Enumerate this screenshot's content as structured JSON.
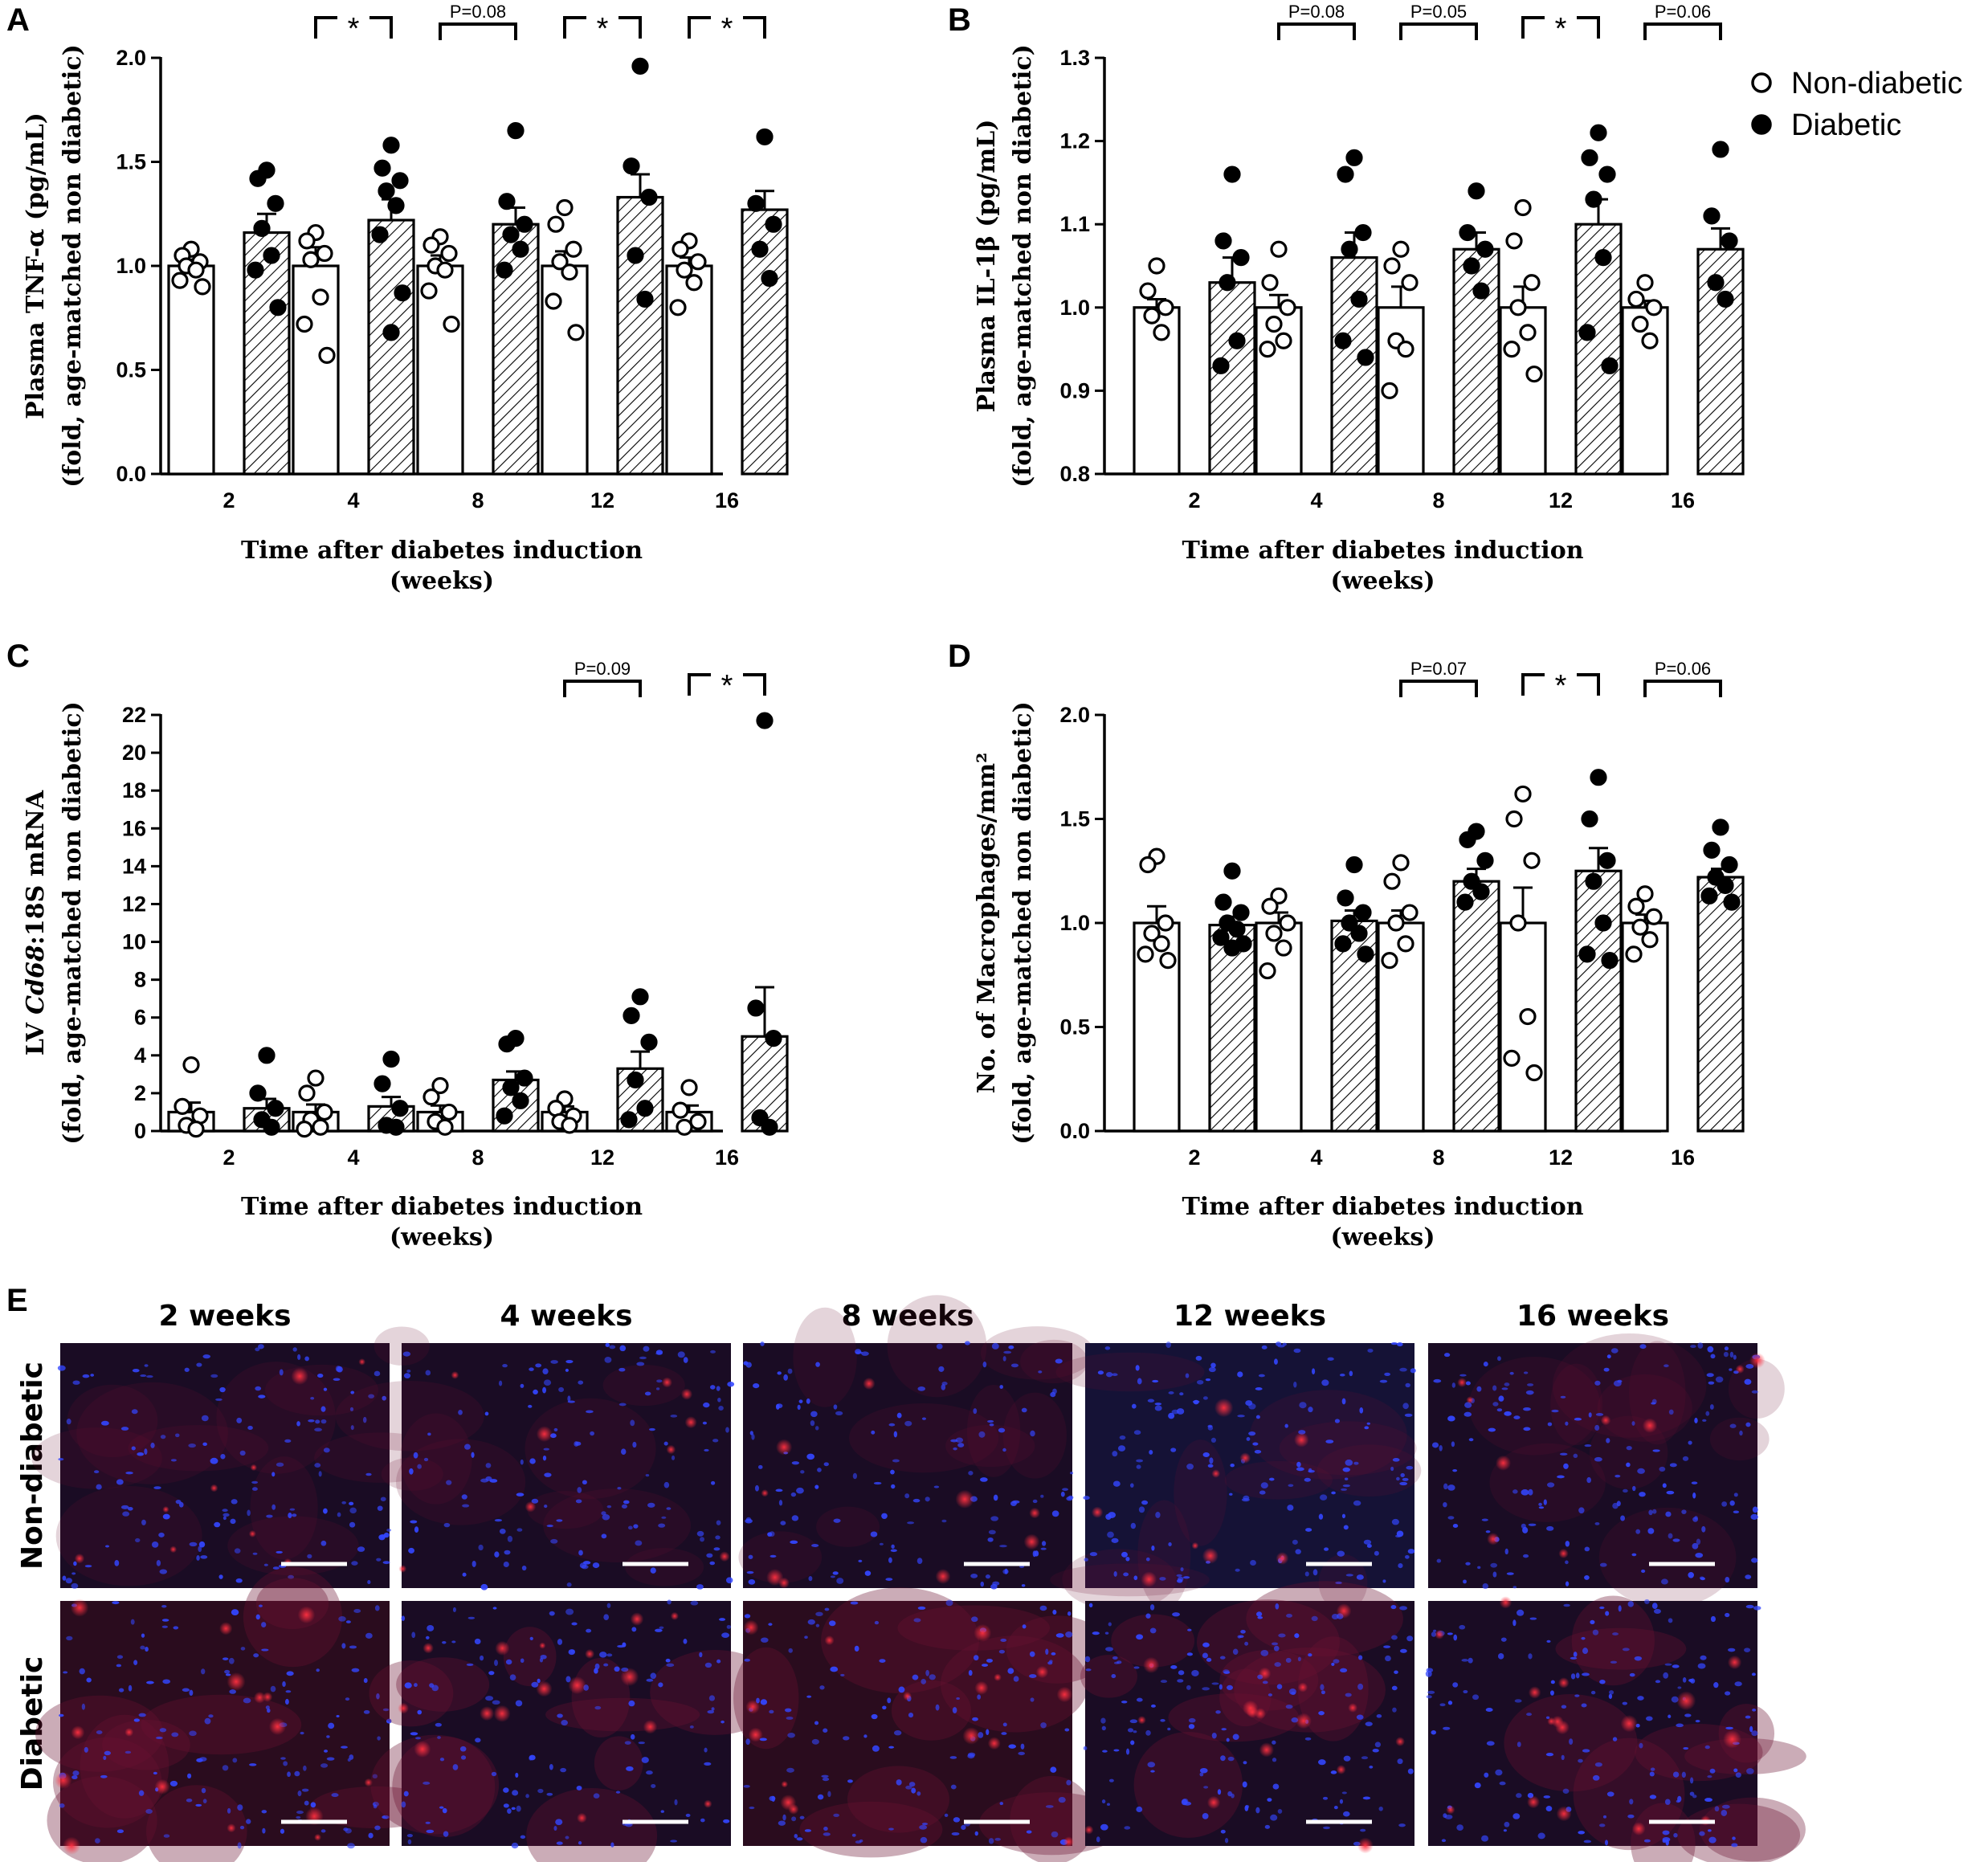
{
  "colors": {
    "axis": "#000000",
    "open_fill": "#ffffff",
    "filled": "#000000",
    "hatch": "#000000",
    "tissue_bg": "#1a0a22",
    "nuclei": "#2a3cff",
    "macrophage": "#ff2030",
    "scalebar": "#ffffff"
  },
  "legend": {
    "items": [
      "Non-diabetic",
      "Diabetic"
    ]
  },
  "chart_data": [
    {
      "panel": "A",
      "type": "bar",
      "categories": [
        "2",
        "4",
        "8",
        "12",
        "16"
      ],
      "xlabel": [
        "Time after diabetes induction",
        "(weeks)"
      ],
      "ylabel": [
        "Plasma TNF-α (pg/mL)",
        "(fold, age-matched non diabetic)"
      ],
      "ylim": [
        0,
        2.0
      ],
      "yticks": [
        0.0,
        0.5,
        1.0,
        1.5,
        2.0
      ],
      "ytick_labels": [
        "0.0",
        "0.5",
        "1.0",
        "1.5",
        "2.0"
      ],
      "series": [
        {
          "name": "Non-diabetic",
          "values": [
            1.0,
            1.0,
            1.0,
            1.0,
            1.0
          ],
          "sem": [
            0.03,
            0.09,
            0.05,
            0.07,
            0.04
          ],
          "points": [
            [
              1.08,
              1.05,
              1.02,
              1.0,
              0.98,
              0.93,
              0.9
            ],
            [
              1.16,
              1.12,
              1.06,
              1.03,
              0.85,
              0.72,
              0.57
            ],
            [
              1.14,
              1.1,
              1.06,
              1.0,
              0.98,
              0.88,
              0.72
            ],
            [
              1.28,
              1.2,
              1.08,
              1.02,
              0.97,
              0.83,
              0.68
            ],
            [
              1.12,
              1.08,
              1.02,
              0.98,
              0.92,
              0.8
            ]
          ]
        },
        {
          "name": "Diabetic",
          "values": [
            1.16,
            1.22,
            1.2,
            1.33,
            1.27
          ],
          "sem": [
            0.09,
            0.1,
            0.08,
            0.11,
            0.09
          ],
          "points": [
            [
              1.46,
              1.42,
              1.3,
              1.18,
              1.05,
              0.98,
              0.8
            ],
            [
              1.58,
              1.47,
              1.41,
              1.36,
              1.29,
              1.15,
              0.87,
              0.68
            ],
            [
              1.65,
              1.31,
              1.2,
              1.15,
              1.08,
              0.98
            ],
            [
              1.96,
              1.48,
              1.33,
              1.05,
              0.84
            ],
            [
              1.62,
              1.3,
              1.2,
              1.08,
              0.94
            ]
          ]
        }
      ],
      "significance": [
        {
          "category": "4",
          "label": "*"
        },
        {
          "category": "8",
          "label": "P=0.08"
        },
        {
          "category": "12",
          "label": "*"
        },
        {
          "category": "16",
          "label": "*"
        }
      ]
    },
    {
      "panel": "B",
      "type": "bar",
      "categories": [
        "2",
        "4",
        "8",
        "12",
        "16"
      ],
      "xlabel": [
        "Time after diabetes induction",
        "(weeks)"
      ],
      "ylabel": [
        "Plasma IL-1β (pg/mL)",
        "(fold, age-matched non diabetic)"
      ],
      "ylim": [
        0.8,
        1.3
      ],
      "yticks": [
        0.8,
        0.9,
        1.0,
        1.1,
        1.2,
        1.3
      ],
      "ytick_labels": [
        "0.8",
        "0.9",
        "1.0",
        "1.1",
        "1.2",
        "1.3"
      ],
      "series": [
        {
          "name": "Non-diabetic",
          "values": [
            1.0,
            1.0,
            1.0,
            1.0,
            1.0
          ],
          "sem": [
            0.01,
            0.015,
            0.025,
            0.025,
            0.008
          ],
          "points": [
            [
              1.05,
              1.02,
              1.0,
              0.99,
              0.97
            ],
            [
              1.07,
              1.03,
              1.0,
              0.98,
              0.96,
              0.95
            ],
            [
              1.07,
              1.05,
              1.03,
              0.96,
              0.95,
              0.9
            ],
            [
              1.12,
              1.08,
              1.03,
              1.0,
              0.97,
              0.95,
              0.92
            ],
            [
              1.03,
              1.01,
              1.0,
              0.98,
              0.96
            ]
          ]
        },
        {
          "name": "Diabetic",
          "values": [
            1.03,
            1.06,
            1.07,
            1.1,
            1.07
          ],
          "sem": [
            0.03,
            0.03,
            0.02,
            0.03,
            0.025
          ],
          "points": [
            [
              1.16,
              1.08,
              1.06,
              1.03,
              0.96,
              0.93
            ],
            [
              1.18,
              1.16,
              1.09,
              1.07,
              1.01,
              0.96,
              0.94
            ],
            [
              1.14,
              1.09,
              1.07,
              1.05,
              1.02
            ],
            [
              1.21,
              1.18,
              1.16,
              1.13,
              1.06,
              0.97,
              0.93
            ],
            [
              1.19,
              1.11,
              1.08,
              1.03,
              1.01
            ]
          ]
        }
      ],
      "significance": [
        {
          "category": "4",
          "label": "P=0.08"
        },
        {
          "category": "8",
          "label": "P=0.05"
        },
        {
          "category": "12",
          "label": "*"
        },
        {
          "category": "16",
          "label": "P=0.06"
        }
      ]
    },
    {
      "panel": "C",
      "type": "bar",
      "categories": [
        "2",
        "4",
        "8",
        "12",
        "16"
      ],
      "xlabel": [
        "Time after diabetes induction",
        "(weeks)"
      ],
      "ylabel_parts": [
        [
          "LV ",
          false
        ],
        [
          "Cd68",
          true
        ],
        [
          ":18S mRNA",
          false
        ]
      ],
      "ylabel": [
        "LV Cd68:18S mRNA",
        "(fold, age-matched non diabetic)"
      ],
      "ylim": [
        0,
        22
      ],
      "yticks": [
        0,
        2,
        4,
        6,
        8,
        10,
        12,
        14,
        16,
        18,
        20,
        22
      ],
      "ytick_labels": [
        "0",
        "2",
        "4",
        "6",
        "8",
        "10",
        "12",
        "14",
        "16",
        "18",
        "20",
        "22"
      ],
      "series": [
        {
          "name": "Non-diabetic",
          "values": [
            1.0,
            1.0,
            1.0,
            1.0,
            1.0
          ],
          "sem": [
            0.5,
            0.4,
            0.35,
            0.3,
            0.35
          ],
          "points": [
            [
              3.5,
              1.3,
              0.8,
              0.3,
              0.1
            ],
            [
              2.8,
              2.0,
              1.0,
              0.6,
              0.2,
              0.1
            ],
            [
              2.4,
              1.8,
              1.0,
              0.5,
              0.2
            ],
            [
              1.7,
              1.2,
              0.8,
              0.5,
              0.3
            ],
            [
              2.3,
              1.1,
              0.5,
              0.2
            ]
          ]
        },
        {
          "name": "Diabetic",
          "values": [
            1.2,
            1.3,
            2.7,
            3.3,
            5.0
          ],
          "sem": [
            0.5,
            0.5,
            0.45,
            0.9,
            2.6
          ],
          "points": [
            [
              4.0,
              2.0,
              1.2,
              0.6,
              0.2
            ],
            [
              3.8,
              2.5,
              1.2,
              0.3,
              0.2
            ],
            [
              4.9,
              4.6,
              2.8,
              2.3,
              1.6,
              0.8
            ],
            [
              7.1,
              6.1,
              4.7,
              2.7,
              1.2,
              0.6
            ],
            [
              21.7,
              6.5,
              4.9,
              0.7,
              0.2
            ]
          ]
        }
      ],
      "significance": [
        {
          "category": "12",
          "label": "P=0.09"
        },
        {
          "category": "16",
          "label": "*"
        }
      ]
    },
    {
      "panel": "D",
      "type": "bar",
      "categories": [
        "2",
        "4",
        "8",
        "12",
        "16"
      ],
      "xlabel": [
        "Time after diabetes induction",
        "(weeks)"
      ],
      "ylabel": [
        "No. of Macrophages/mm²",
        "(fold, age-matched non diabetic)"
      ],
      "ylim": [
        0,
        2.0
      ],
      "yticks": [
        0.0,
        0.5,
        1.0,
        1.5,
        2.0
      ],
      "ytick_labels": [
        "0.0",
        "0.5",
        "1.0",
        "1.5",
        "2.0"
      ],
      "series": [
        {
          "name": "Non-diabetic",
          "values": [
            1.0,
            1.0,
            1.0,
            1.0,
            1.0
          ],
          "sem": [
            0.08,
            0.05,
            0.06,
            0.17,
            0.04
          ],
          "points": [
            [
              1.32,
              1.28,
              1.0,
              0.95,
              0.9,
              0.85,
              0.82
            ],
            [
              1.13,
              1.08,
              1.0,
              0.95,
              0.88,
              0.77
            ],
            [
              1.29,
              1.2,
              1.05,
              1.0,
              0.9,
              0.82
            ],
            [
              1.62,
              1.5,
              1.3,
              1.0,
              0.55,
              0.35,
              0.28
            ],
            [
              1.14,
              1.08,
              1.03,
              0.98,
              0.92,
              0.85
            ]
          ]
        },
        {
          "name": "Diabetic",
          "values": [
            0.99,
            1.01,
            1.2,
            1.25,
            1.22
          ],
          "sem": [
            0.04,
            0.05,
            0.06,
            0.11,
            0.04
          ],
          "points": [
            [
              1.25,
              1.1,
              1.05,
              1.0,
              0.97,
              0.93,
              0.9,
              0.88
            ],
            [
              1.28,
              1.12,
              1.05,
              1.0,
              0.95,
              0.9,
              0.85
            ],
            [
              1.44,
              1.4,
              1.3,
              1.2,
              1.15,
              1.1
            ],
            [
              1.7,
              1.5,
              1.3,
              1.2,
              1.0,
              0.85,
              0.82
            ],
            [
              1.46,
              1.35,
              1.28,
              1.22,
              1.18,
              1.13,
              1.1
            ]
          ]
        }
      ],
      "significance": [
        {
          "category": "8",
          "label": "P=0.07"
        },
        {
          "category": "12",
          "label": "*"
        },
        {
          "category": "16",
          "label": "P=0.06"
        }
      ]
    }
  ],
  "micrographs": {
    "panel": "E",
    "columns": [
      "2 weeks",
      "4 weeks",
      "8 weeks",
      "12 weeks",
      "16 weeks"
    ],
    "rows": [
      "Non-diabetic",
      "Diabetic"
    ]
  }
}
